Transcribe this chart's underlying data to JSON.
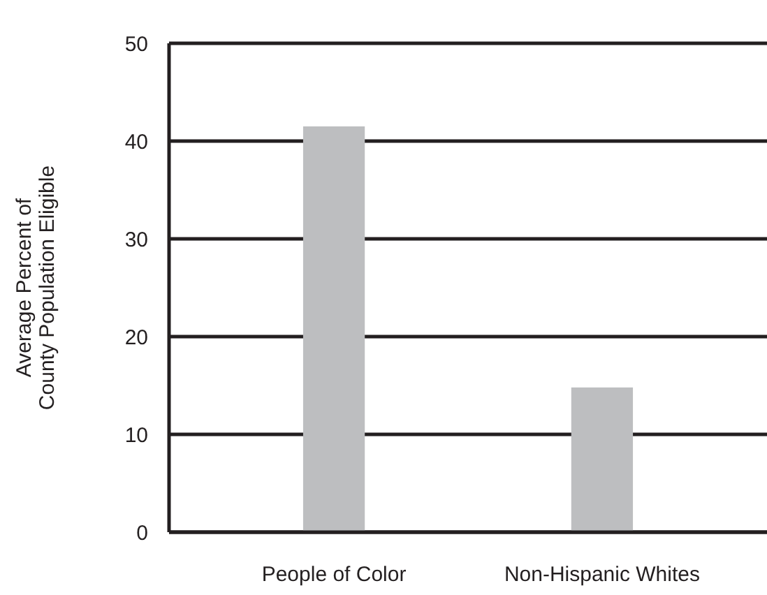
{
  "chart_data": {
    "type": "bar",
    "ylabel": "Average Percent of\nCounty Population Eligible",
    "categories": [
      "People of Color",
      "Non-Hispanic Whites"
    ],
    "values": [
      41.5,
      14.8
    ],
    "color": "#bdbec0",
    "ylim": [
      0,
      50
    ],
    "yticks": [
      0,
      10,
      20,
      30,
      40,
      50
    ],
    "grid": "y"
  }
}
